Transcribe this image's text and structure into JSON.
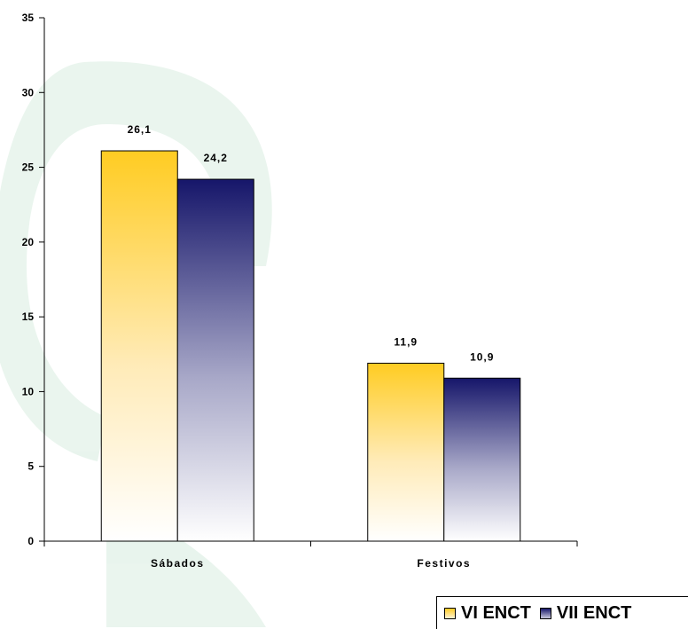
{
  "chart_data": {
    "type": "bar",
    "categories": [
      "Sábados",
      "Festivos"
    ],
    "series": [
      {
        "name": "VI ENCT",
        "values": [
          26.1,
          11.9
        ],
        "labels": [
          "26,1",
          "11,9"
        ],
        "color": "#FFCC22"
      },
      {
        "name": "VII ENCT",
        "values": [
          24.2,
          10.9
        ],
        "labels": [
          "24,2",
          "10,9"
        ],
        "color": "#1A1A6E"
      }
    ],
    "yticks": [
      "0",
      "5",
      "10",
      "15",
      "20",
      "25",
      "30",
      "35"
    ],
    "ylim": [
      0,
      35
    ],
    "grid": false,
    "legend": "bottom-right"
  }
}
